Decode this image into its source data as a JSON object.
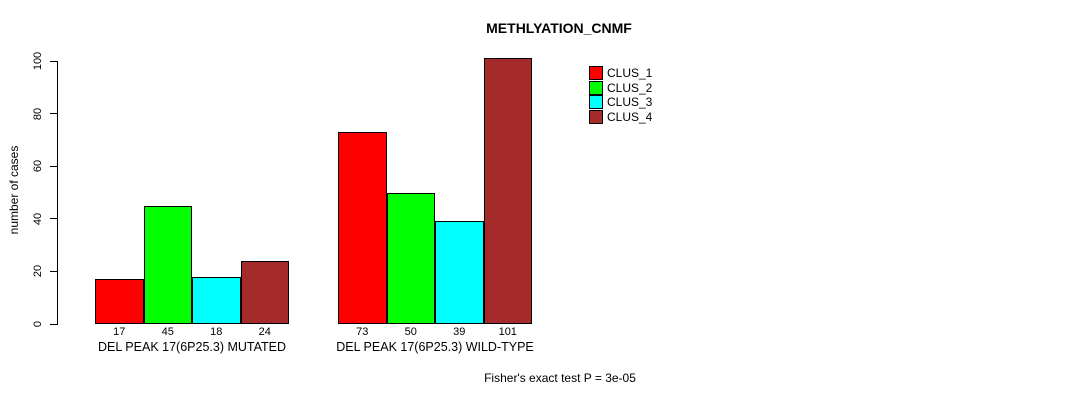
{
  "chart_data": {
    "type": "bar",
    "title": "METHLYATION_CNMF",
    "ylabel": "number of cases",
    "xlabel": "",
    "ylim": [
      0,
      100
    ],
    "yticks": [
      0,
      20,
      40,
      60,
      80,
      100
    ],
    "grid": false,
    "legend_position": "top-right",
    "categories": [
      "DEL PEAK 17(6P25.3) MUTATED",
      "DEL PEAK 17(6P25.3) WILD-TYPE"
    ],
    "series": [
      {
        "name": "CLUS_1",
        "color": "#FF0000",
        "values": [
          17,
          73
        ]
      },
      {
        "name": "CLUS_2",
        "color": "#00FF00",
        "values": [
          45,
          50
        ]
      },
      {
        "name": "CLUS_3",
        "color": "#00FFFF",
        "values": [
          18,
          39
        ]
      },
      {
        "name": "CLUS_4",
        "color": "#A52A2A",
        "values": [
          24,
          101
        ]
      }
    ],
    "bar_border_color": "#000000",
    "value_labels_visible": true,
    "annotation": "Fisher's exact test P = 3e-05"
  },
  "colors": {
    "background": "#FFFFFF",
    "text": "#000000"
  }
}
